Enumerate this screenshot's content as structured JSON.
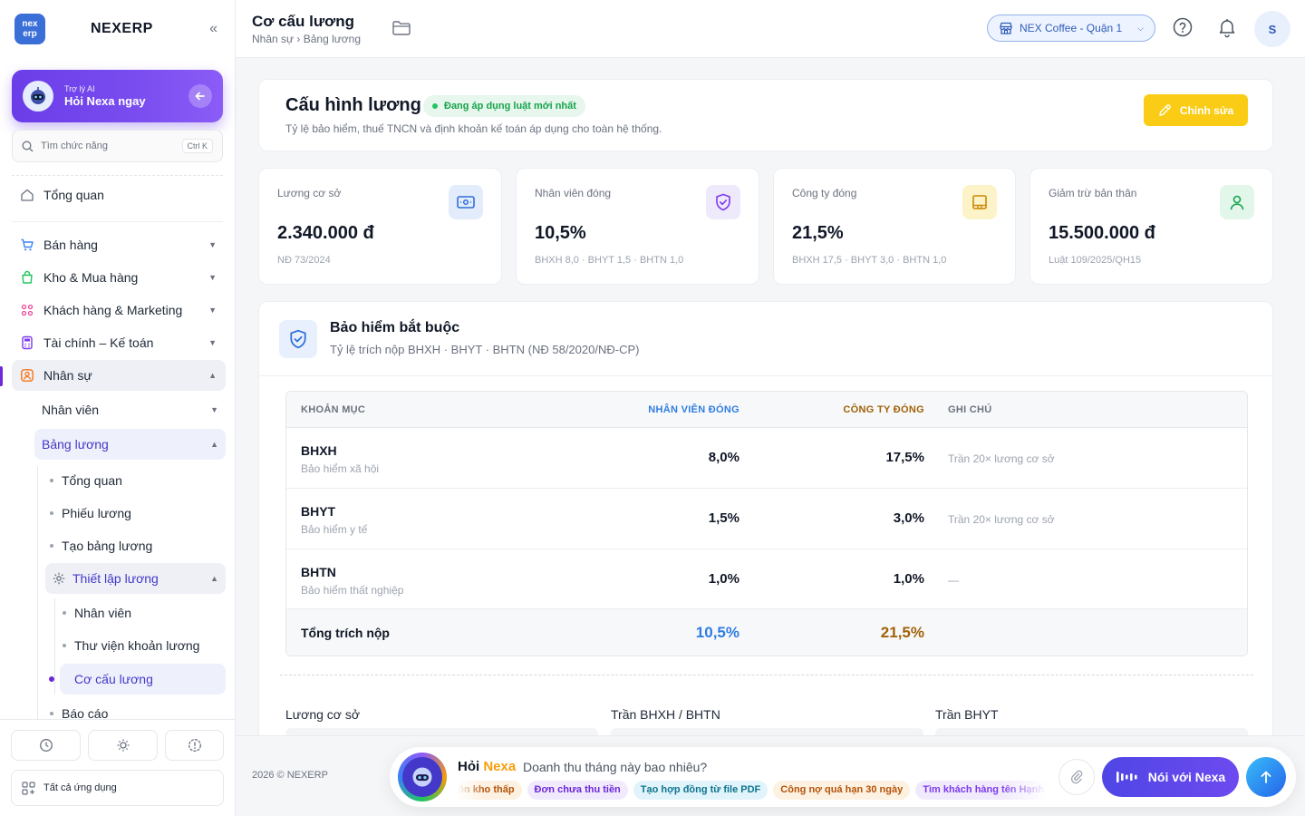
{
  "brand": {
    "logo_top": "nex",
    "logo_bottom": "erp",
    "name": "NEXERP",
    "collapse_icon": "double-chevron-left-icon"
  },
  "ai_card": {
    "small": "Trợ lý AI",
    "big": "Hỏi Nexa ngay"
  },
  "search": {
    "placeholder": "Tìm chức năng",
    "shortcut": "Ctrl K"
  },
  "sidebar": {
    "overview": "Tổng quan",
    "groups": [
      {
        "label": "Bán hàng",
        "icon": "cart-icon"
      },
      {
        "label": "Kho & Mua hàng",
        "icon": "bag-icon"
      },
      {
        "label": "Khách hàng & Marketing",
        "icon": "people-icon"
      },
      {
        "label": "Tài chính – Kế toán",
        "icon": "calculator-icon"
      },
      {
        "label": "Nhân sự",
        "icon": "user-icon"
      }
    ],
    "hr": {
      "employees": "Nhân viên",
      "payroll": "Bảng lương",
      "payroll_items": [
        "Tổng quan",
        "Phiếu lương",
        "Tạo bảng lương"
      ],
      "settings": "Thiết lập lương",
      "settings_items": [
        "Nhân viên",
        "Thư viện khoản lương",
        "Cơ cấu lương"
      ],
      "reports": "Báo cáo"
    },
    "all_apps": "Tất cả ứng dụng"
  },
  "header": {
    "title": "Cơ cấu lương",
    "breadcrumb": "Nhân sự › Bảng lương",
    "store": "NEX Coffee - Quận 1",
    "avatar": "S"
  },
  "config": {
    "title": "Cấu hình lương",
    "status": "Đang áp dụng luật mới nhất",
    "desc": "Tỷ lệ bảo hiểm, thuế TNCN và định khoản kế toán áp dụng cho toàn hệ thống.",
    "edit": "Chỉnh sửa"
  },
  "stats": [
    {
      "label": "Lương cơ sở",
      "value": "2.340.000 đ",
      "note": "NĐ 73/2024",
      "icon": "money-icon"
    },
    {
      "label": "Nhân viên đóng",
      "value": "10,5%",
      "note": "BHXH 8,0 · BHYT 1,5 · BHTN 1,0",
      "icon": "shield-icon"
    },
    {
      "label": "Công ty đóng",
      "value": "21,5%",
      "note": "BHXH 17,5 · BHYT 3,0 · BHTN 1,0",
      "icon": "building-icon"
    },
    {
      "label": "Giảm trừ bản thân",
      "value": "15.500.000 đ",
      "note": "Luật 109/2025/QH15",
      "icon": "person-icon"
    }
  ],
  "insurance": {
    "title": "Bảo hiểm bắt buộc",
    "subtitle": "Tỷ lệ trích nộp BHXH · BHYT · BHTN (NĐ 58/2020/NĐ-CP)",
    "columns": {
      "item": "KHOẢN MỤC",
      "employee": "NHÂN VIÊN ĐÓNG",
      "company": "CÔNG TY ĐÓNG",
      "note": "GHI CHÚ"
    },
    "rows": [
      {
        "name": "BHXH",
        "desc": "Bảo hiểm xã hội",
        "employee": "8,0%",
        "company": "17,5%",
        "note": "Trần 20× lương cơ sở"
      },
      {
        "name": "BHYT",
        "desc": "Bảo hiểm y tế",
        "employee": "1,5%",
        "company": "3,0%",
        "note": "Trần 20× lương cơ sở"
      },
      {
        "name": "BHTN",
        "desc": "Bảo hiểm thất nghiệp",
        "employee": "1,0%",
        "company": "1,0%",
        "note": "—"
      }
    ],
    "total": {
      "label": "Tổng trích nộp",
      "employee": "10,5%",
      "company": "21,5%"
    },
    "fields": [
      "Lương cơ sở",
      "Trần BHXH / BHTN",
      "Trần BHYT"
    ]
  },
  "footer": {
    "copyright": "2026 © NEXERP",
    "hoi": "Hỏi",
    "nexa": "Nexa",
    "question": "Doanh thu tháng này bao nhiêu?",
    "chips": [
      "Hàng tồn kho thấp",
      "Đơn chưa thu tiền",
      "Tạo hợp đồng từ file PDF",
      "Công nợ quá hạn 30 ngày",
      "Tìm khách hàng tên Hạnh"
    ],
    "voice": "Nói với Nexa"
  },
  "colors": {
    "accent": "#6d28d9",
    "blue": "#2f7de1",
    "gold": "#a16207",
    "yellow": "#facc15"
  }
}
